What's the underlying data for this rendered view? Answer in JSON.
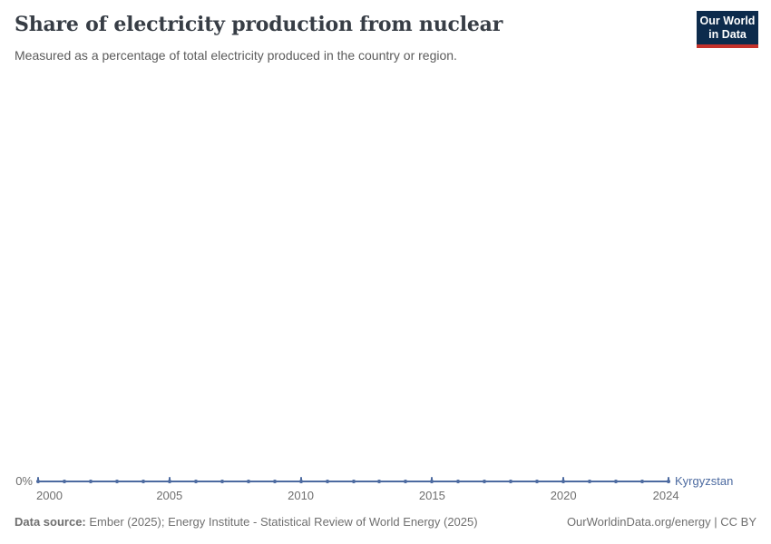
{
  "header": {
    "title": "Share of electricity production from nuclear",
    "subtitle": "Measured as a percentage of total electricity produced in the country or region.",
    "logo": {
      "line1": "Our World",
      "line2": "in Data"
    }
  },
  "chart_data": {
    "type": "line",
    "title": "Share of electricity production from nuclear",
    "subtitle": "Measured as a percentage of total electricity produced in the country or region.",
    "x": [
      2000,
      2001,
      2002,
      2003,
      2004,
      2005,
      2006,
      2007,
      2008,
      2009,
      2010,
      2011,
      2012,
      2013,
      2014,
      2015,
      2016,
      2017,
      2018,
      2019,
      2020,
      2021,
      2022,
      2023,
      2024
    ],
    "series": [
      {
        "name": "Kyrgyzstan",
        "values": [
          0,
          0,
          0,
          0,
          0,
          0,
          0,
          0,
          0,
          0,
          0,
          0,
          0,
          0,
          0,
          0,
          0,
          0,
          0,
          0,
          0,
          0,
          0,
          0,
          0
        ],
        "color": "#4c6aa0"
      }
    ],
    "x_ticks": [
      2000,
      2005,
      2010,
      2015,
      2020,
      2024
    ],
    "x_tick_labels": [
      "2000",
      "2005",
      "2010",
      "2015",
      "2020",
      "2024"
    ],
    "y_ticks": [
      "0%"
    ],
    "grid": false,
    "legend_position": "end-of-line-label",
    "markers": true
  },
  "axis": {
    "y_zero_label": "0%",
    "entity_label": "Kyrgyzstan"
  },
  "footer": {
    "data_source_label": "Data source:",
    "data_source_value": " Ember (2025); Energy Institute - Statistical Review of World Energy (2025)",
    "license": "OurWorldinData.org/energy | CC BY"
  },
  "colors": {
    "line": "#4c6aa0",
    "entity_label": "#4c6aa0",
    "axis_text": "#6e6e6e",
    "logo_bg": "#0d2b4c",
    "logo_red": "#c5312b"
  }
}
